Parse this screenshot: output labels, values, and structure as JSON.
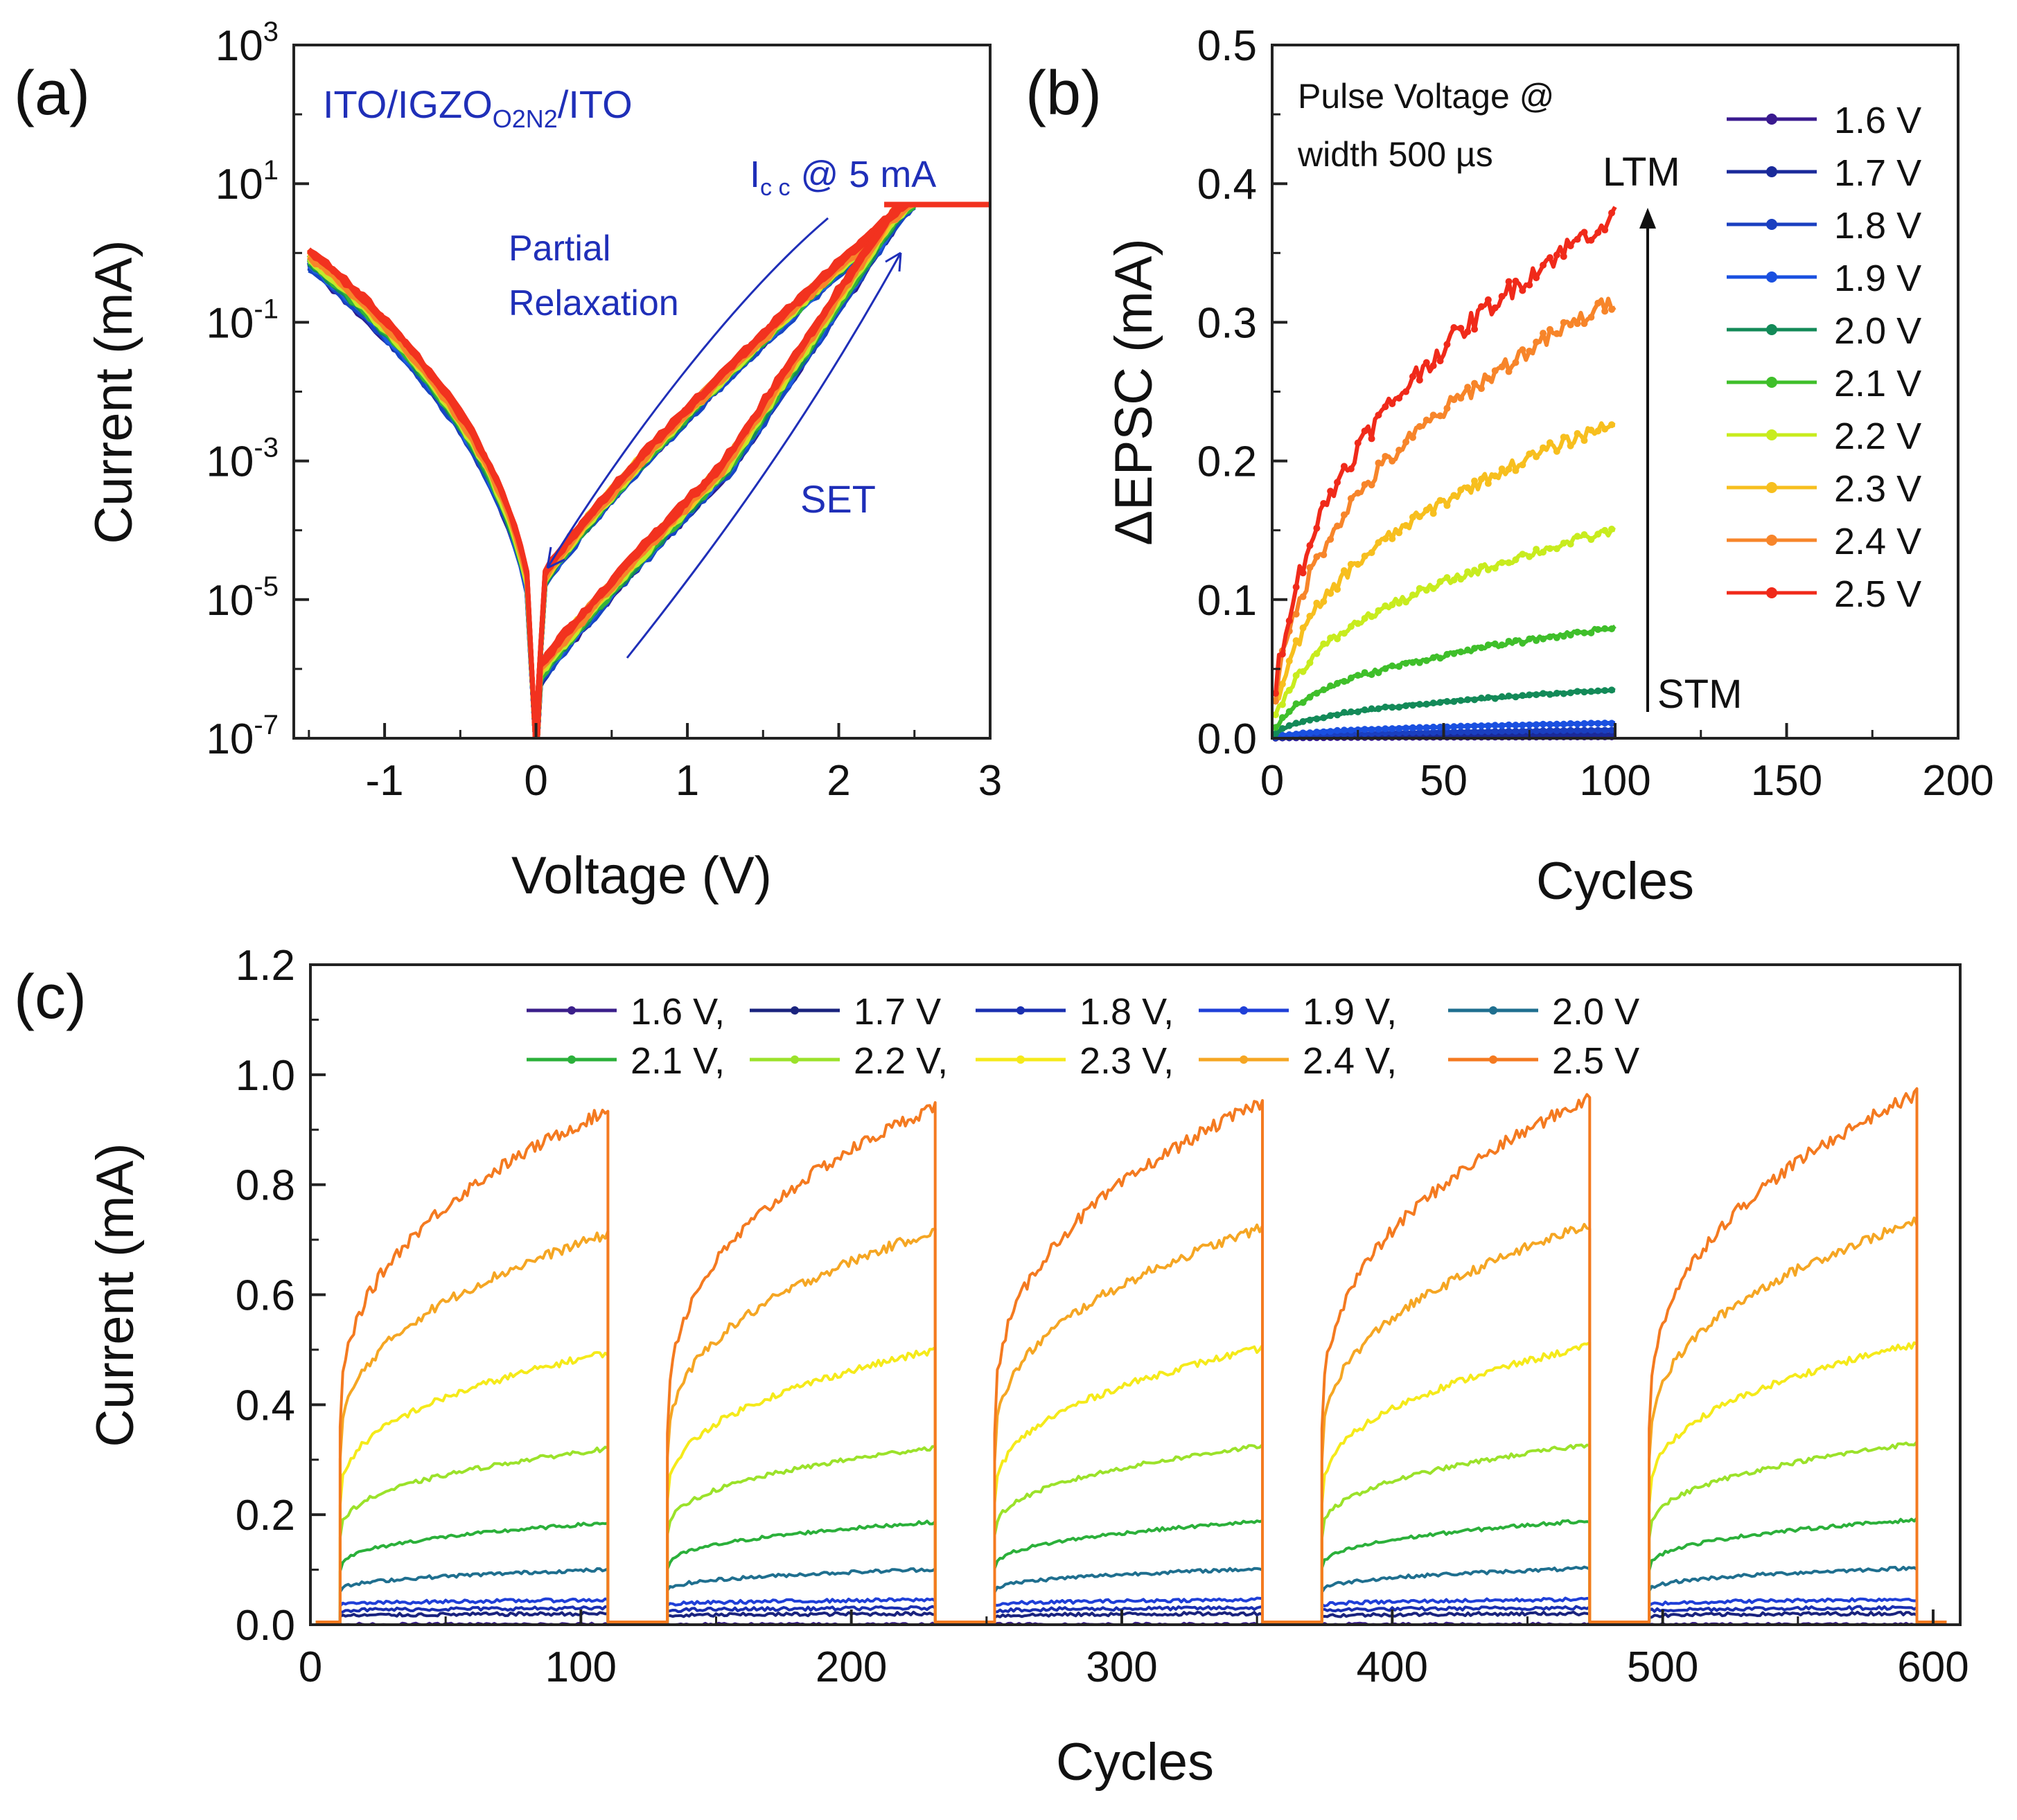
{
  "chart_data": [
    {
      "panel": "(a)",
      "type": "line",
      "title": "",
      "annotations": {
        "device": "ITO/IGZO",
        "device_sub": "O2N2",
        "device_suffix": "/ITO",
        "icc": "I",
        "icc_sub": "c c",
        "icc_suffix": " @ 5 mA",
        "relax1": "Partial",
        "relax2": "Relaxation",
        "set": "SET"
      },
      "xlabel": "Voltage (V)",
      "ylabel": "Current (mA)",
      "xlim": [
        -1.6,
        3
      ],
      "ylim_log10": [
        -7,
        3
      ],
      "xticks": [
        -1,
        0,
        1,
        2,
        3
      ],
      "xtick_labels": [
        "-1",
        "0",
        "1",
        "2",
        "3"
      ],
      "ytick_exponents": [
        -7,
        -5,
        -3,
        -1,
        1,
        3
      ],
      "ytick_base": "10",
      "ytick_exp_labels": [
        "-7",
        "-5",
        "-3",
        "-1",
        "1",
        "3"
      ],
      "compliance_mA": 5,
      "series": [
        {
          "name": "1.6 V",
          "color": "#2b1a8f",
          "shift": 0.0
        },
        {
          "name": "1.7 V",
          "color": "#1a2fa0",
          "shift": 0.06
        },
        {
          "name": "1.8 V",
          "color": "#1746c4",
          "shift": 0.12
        },
        {
          "name": "1.9 V",
          "color": "#1f5fe0",
          "shift": 0.18
        },
        {
          "name": "2.0 V",
          "color": "#138a58",
          "shift": 0.26
        },
        {
          "name": "2.1 V",
          "color": "#34b33a",
          "shift": 0.34
        },
        {
          "name": "2.2 V",
          "color": "#c2ea2a",
          "shift": 0.42
        },
        {
          "name": "2.3 V",
          "color": "#f6c322",
          "shift": 0.5
        },
        {
          "name": "2.4 V",
          "color": "#f7852a",
          "shift": 0.58
        },
        {
          "name": "2.5 V",
          "color": "#f2321f",
          "shift": 0.66
        }
      ]
    },
    {
      "panel": "(b)",
      "type": "line",
      "title": "",
      "annotations": {
        "pulse1": "Pulse Voltage @",
        "pulse2": "width 500 µs",
        "ltm": "LTM",
        "stm": "STM"
      },
      "xlabel": "Cycles",
      "ylabel": "ΔEPSC (mA)",
      "xlim": [
        0,
        200
      ],
      "ylim": [
        0,
        0.5
      ],
      "xticks": [
        0,
        50,
        100,
        150,
        200
      ],
      "xtick_labels": [
        "0",
        "50",
        "100",
        "150",
        "200"
      ],
      "yticks": [
        0.0,
        0.1,
        0.2,
        0.3,
        0.4,
        0.5
      ],
      "ytick_labels": [
        "0.0",
        "0.1",
        "0.2",
        "0.3",
        "0.4",
        "0.5"
      ],
      "x_range": [
        1,
        100
      ],
      "legend": "top-right",
      "series": [
        {
          "name": "1.6 V",
          "color": "#3a1a8f",
          "final": 0.001,
          "marker": "square"
        },
        {
          "name": "1.7 V",
          "color": "#1a2a9a",
          "final": 0.003,
          "marker": "circle"
        },
        {
          "name": "1.8 V",
          "color": "#1a3fc0",
          "final": 0.006,
          "marker": "triangle-up"
        },
        {
          "name": "1.9 V",
          "color": "#1a50e0",
          "final": 0.011,
          "marker": "triangle-down"
        },
        {
          "name": "2.0 V",
          "color": "#138a58",
          "final": 0.035,
          "marker": "diamond"
        },
        {
          "name": "2.1 V",
          "color": "#3fbf2a",
          "final": 0.08,
          "marker": "triangle-left"
        },
        {
          "name": "2.2 V",
          "color": "#c8ec1e",
          "final": 0.15,
          "marker": "triangle-right"
        },
        {
          "name": "2.3 V",
          "color": "#f7bf1e",
          "final": 0.228,
          "marker": "hexagon"
        },
        {
          "name": "2.4 V",
          "color": "#f7852a",
          "final": 0.316,
          "marker": "star"
        },
        {
          "name": "2.5 V",
          "color": "#f02a1a",
          "final": 0.377,
          "marker": "circle"
        }
      ]
    },
    {
      "panel": "(c)",
      "type": "line",
      "title": "",
      "xlabel": "Cycles",
      "ylabel": "Current (mA)",
      "xlim": [
        0,
        610
      ],
      "ylim": [
        0,
        1.2
      ],
      "xticks": [
        0,
        100,
        200,
        300,
        400,
        500,
        600
      ],
      "xtick_labels": [
        "0",
        "100",
        "200",
        "300",
        "400",
        "500",
        "600"
      ],
      "yticks": [
        0.0,
        0.2,
        0.4,
        0.6,
        0.8,
        1.0,
        1.2
      ],
      "ytick_labels": [
        "0.0",
        "0.2",
        "0.4",
        "0.6",
        "0.8",
        "1.0",
        "1.2"
      ],
      "pulse_windows": [
        [
          11,
          110
        ],
        [
          132,
          231
        ],
        [
          253,
          352
        ],
        [
          374,
          473
        ],
        [
          495,
          594
        ]
      ],
      "legend_rows": [
        [
          "1.6 V,",
          "1.7 V",
          "1.8 V,",
          "1.9 V,",
          "2.0 V"
        ],
        [
          "2.1 V,",
          "2.2 V,",
          "2.3 V,",
          "2.4 V,",
          "2.5 V"
        ]
      ],
      "series": [
        {
          "name": "1.6 V",
          "color": "#3b1f8a",
          "base": 0.0,
          "final": 0.0
        },
        {
          "name": "1.7 V",
          "color": "#1a237e",
          "base": 0.015,
          "final": 0.02
        },
        {
          "name": "1.8 V",
          "color": "#1a2fb0",
          "base": 0.025,
          "final": 0.03
        },
        {
          "name": "1.9 V",
          "color": "#1f3fd8",
          "base": 0.035,
          "final": 0.045
        },
        {
          "name": "2.0 V",
          "color": "#1f6f8f",
          "base": 0.06,
          "final": 0.1
        },
        {
          "name": "2.1 V",
          "color": "#2bb03a",
          "base": 0.1,
          "final": 0.185
        },
        {
          "name": "2.2 V",
          "color": "#9be22a",
          "base": 0.16,
          "final": 0.32
        },
        {
          "name": "2.3 V",
          "color": "#f5ea1a",
          "base": 0.22,
          "final": 0.495
        },
        {
          "name": "2.4 V",
          "color": "#f5a623",
          "base": 0.3,
          "final": 0.71
        },
        {
          "name": "2.5 V",
          "color": "#f47a20",
          "base": 0.35,
          "final": 0.935
        }
      ]
    }
  ]
}
